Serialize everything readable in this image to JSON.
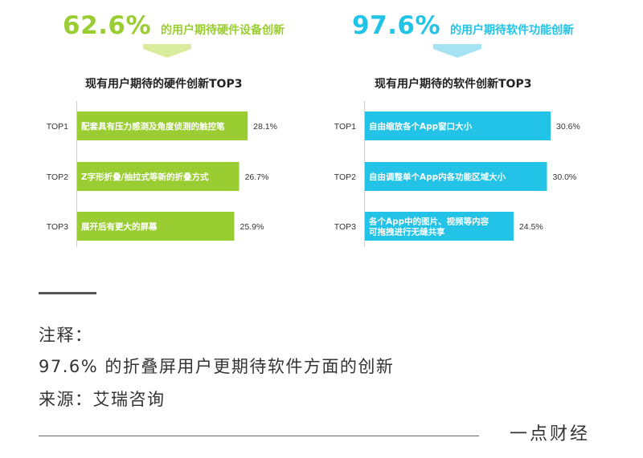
{
  "colors": {
    "hardware": "#9acd32",
    "software": "#22c3e6",
    "arrow_hw": "#d9ec9e",
    "arrow_sw": "#a6e3f2"
  },
  "hardware": {
    "percent": "62.6%",
    "desc": "的用户期待硬件设备创新",
    "title": "现有用户期待的硬件创新TOP3"
  },
  "software": {
    "percent": "97.6%",
    "desc": "的用户期待软件功能创新",
    "title": "现有用户期待的软件创新TOP3"
  },
  "chart_data": [
    {
      "type": "bar",
      "orientation": "horizontal",
      "title": "现有用户期待的硬件创新TOP3",
      "categories": [
        "TOP1",
        "TOP2",
        "TOP3"
      ],
      "bar_labels": [
        "配套具有压力感测及角度侦测的触控笔",
        "Z字形折叠/抽拉式等新的折叠方式",
        "展开后有更大的屏幕"
      ],
      "values": [
        28.1,
        26.7,
        25.9
      ],
      "value_labels": [
        "28.1%",
        "26.7%",
        "25.9%"
      ],
      "unit": "%",
      "color": "#9acd32",
      "xlim": [
        0,
        35
      ]
    },
    {
      "type": "bar",
      "orientation": "horizontal",
      "title": "现有用户期待的软件创新TOP3",
      "categories": [
        "TOP1",
        "TOP2",
        "TOP3"
      ],
      "bar_labels": [
        "自由缩放各个App窗口大小",
        "自由调整单个App内各功能区域大小",
        "各个App中的图片、视频等内容\n可拖拽进行无缝共享"
      ],
      "values": [
        30.6,
        30.0,
        24.5
      ],
      "value_labels": [
        "30.6%",
        "30.0%",
        "24.5%"
      ],
      "unit": "%",
      "color": "#22c3e6",
      "xlim": [
        0,
        35
      ]
    }
  ],
  "footer": {
    "note_label": "注释：",
    "note_text": "97.6% 的折叠屏用户更期待软件方面的创新",
    "source": "来源：艾瑞咨询",
    "brand": "一点财经"
  }
}
